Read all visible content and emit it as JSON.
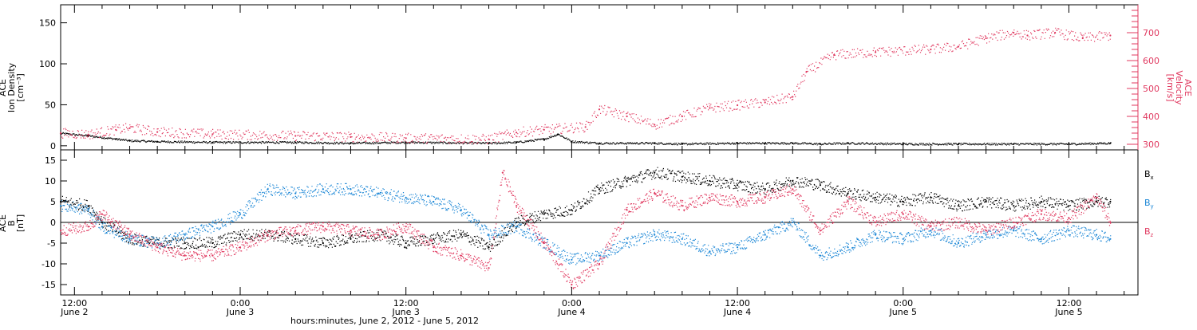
{
  "colors": {
    "axis": "#000000",
    "bx": "#000000",
    "by": "#1a86d6",
    "bz": "#e0385f",
    "velocity": "#e0385f",
    "density": "#000000"
  },
  "chart_data": [
    {
      "type": "scatter",
      "panel": "top",
      "left_axis": {
        "label_lines": [
          "ACE",
          "Ion Density",
          "[cm⁻³]"
        ],
        "ticks": [
          "0",
          "50",
          "100",
          "150"
        ],
        "tick_values": [
          0,
          50,
          100,
          150
        ],
        "ylim": [
          -5,
          172
        ]
      },
      "right_axis": {
        "label_lines": [
          "ACE",
          "Velocity",
          "[km/s]"
        ],
        "ticks": [
          "300",
          "400",
          "500",
          "600",
          "700"
        ],
        "tick_values": [
          300,
          400,
          500,
          600,
          700
        ],
        "ylim": [
          280,
          800
        ]
      },
      "xlim_hours": [
        -1,
        77
      ],
      "series": [
        {
          "key": "density",
          "axis": "left",
          "color": "#000000",
          "x": [
            -1,
            1,
            3,
            4,
            6,
            10,
            16,
            20,
            24,
            30,
            32,
            34,
            35,
            36,
            38,
            42,
            44,
            48,
            50,
            52,
            54,
            56,
            60,
            64,
            68,
            72,
            75
          ],
          "y": [
            15,
            12,
            8,
            6,
            5,
            4,
            4,
            3,
            4,
            3,
            4,
            8,
            14,
            5,
            3,
            3,
            2,
            3,
            3,
            3,
            2,
            3,
            2,
            2,
            2,
            2,
            3
          ]
        },
        {
          "key": "velocity",
          "axis": "right",
          "color": "#e0385f",
          "x": [
            -1,
            1,
            3,
            4,
            6,
            10,
            16,
            20,
            24,
            30,
            32,
            34,
            37,
            38,
            40,
            42,
            44,
            46,
            48,
            50,
            52,
            53,
            55,
            58,
            62,
            64,
            66,
            68,
            69,
            71,
            73,
            75
          ],
          "y": [
            340,
            335,
            352,
            358,
            344,
            336,
            330,
            326,
            322,
            318,
            342,
            352,
            362,
            425,
            400,
            370,
            400,
            430,
            440,
            450,
            470,
            560,
            620,
            630,
            640,
            650,
            680,
            700,
            690,
            700,
            680,
            690
          ]
        }
      ]
    },
    {
      "type": "scatter",
      "panel": "bottom",
      "left_axis": {
        "label_lines": [
          "ACE",
          "B",
          "[nT]"
        ],
        "ticks": [
          "-15",
          "-10",
          "-5",
          "0",
          "5",
          "10",
          "15"
        ],
        "tick_values": [
          -15,
          -10,
          -5,
          0,
          5,
          10,
          15
        ],
        "ylim": [
          -17.5,
          17.5
        ]
      },
      "zero_line": true,
      "legend": {
        "position": "right",
        "entries": [
          {
            "label": "B",
            "sub": "x",
            "color": "#000000"
          },
          {
            "label": "B",
            "sub": "y",
            "color": "#1a86d6"
          },
          {
            "label": "B",
            "sub": "z",
            "color": "#e0385f"
          }
        ]
      },
      "xlim_hours": [
        -1,
        77
      ],
      "series": [
        {
          "key": "bx",
          "color": "#000000",
          "x": [
            -1,
            1,
            2,
            4,
            6,
            8,
            10,
            12,
            14,
            16,
            18,
            20,
            22,
            24,
            26,
            28,
            30,
            32,
            34,
            36,
            38,
            40,
            42,
            44,
            46,
            48,
            50,
            52,
            54,
            56,
            58,
            60,
            62,
            64,
            66,
            68,
            70,
            72,
            74,
            75
          ],
          "y": [
            5,
            4,
            0,
            -4,
            -5,
            -5,
            -5,
            -3,
            -3,
            -4,
            -5,
            -4,
            -3,
            -5,
            -4,
            -3,
            -6,
            0,
            2,
            3,
            8,
            10,
            12,
            11,
            10,
            9,
            8,
            10,
            9,
            7,
            6,
            5,
            6,
            4,
            5,
            4,
            5,
            4,
            5,
            5
          ]
        },
        {
          "key": "by",
          "color": "#1a86d6",
          "x": [
            -1,
            1,
            2,
            4,
            6,
            8,
            10,
            12,
            14,
            16,
            18,
            20,
            22,
            24,
            26,
            28,
            30,
            32,
            34,
            36,
            38,
            40,
            42,
            44,
            46,
            48,
            50,
            52,
            54,
            56,
            58,
            60,
            62,
            64,
            66,
            68,
            70,
            72,
            74,
            75
          ],
          "y": [
            4,
            3,
            -1,
            -4,
            -5,
            -3,
            -1,
            2,
            8,
            7,
            8,
            8,
            7,
            6,
            5,
            3,
            -3,
            -1,
            -5,
            -9,
            -8,
            -5,
            -3,
            -4,
            -7,
            -6,
            -3,
            0,
            -8,
            -6,
            -3,
            -4,
            -2,
            -5,
            -3,
            -2,
            -4,
            -2,
            -3,
            -4
          ]
        },
        {
          "key": "bz",
          "color": "#e0385f",
          "x": [
            -1,
            1,
            2,
            4,
            6,
            8,
            10,
            12,
            14,
            16,
            18,
            20,
            22,
            24,
            26,
            28,
            30,
            31,
            32,
            34,
            36,
            38,
            40,
            42,
            44,
            46,
            48,
            50,
            52,
            54,
            56,
            58,
            60,
            62,
            64,
            66,
            68,
            70,
            72,
            74,
            75
          ],
          "y": [
            -2,
            -1,
            2,
            -3,
            -6,
            -8,
            -8,
            -6,
            -3,
            -2,
            -1,
            -2,
            -3,
            -1,
            -6,
            -8,
            -11,
            12,
            4,
            -5,
            -15,
            -10,
            3,
            7,
            4,
            6,
            5,
            6,
            8,
            -2,
            5,
            0,
            2,
            -1,
            0,
            -2,
            0,
            2,
            1,
            6,
            0
          ]
        }
      ]
    }
  ],
  "x_axis": {
    "ticks": [
      {
        "top": "12:00",
        "bottom": "June 2",
        "hour": 0
      },
      {
        "top": "0:00",
        "bottom": "June 3",
        "hour": 12
      },
      {
        "top": "12:00",
        "bottom": "June 3",
        "hour": 24
      },
      {
        "top": "0:00",
        "bottom": "June 4",
        "hour": 36
      },
      {
        "top": "12:00",
        "bottom": "June 4",
        "hour": 48
      },
      {
        "top": "0:00",
        "bottom": "June 5",
        "hour": 60
      },
      {
        "top": "12:00",
        "bottom": "June 5",
        "hour": 72
      }
    ],
    "title": "hours:minutes, June  2, 2012 - June  5, 2012"
  }
}
